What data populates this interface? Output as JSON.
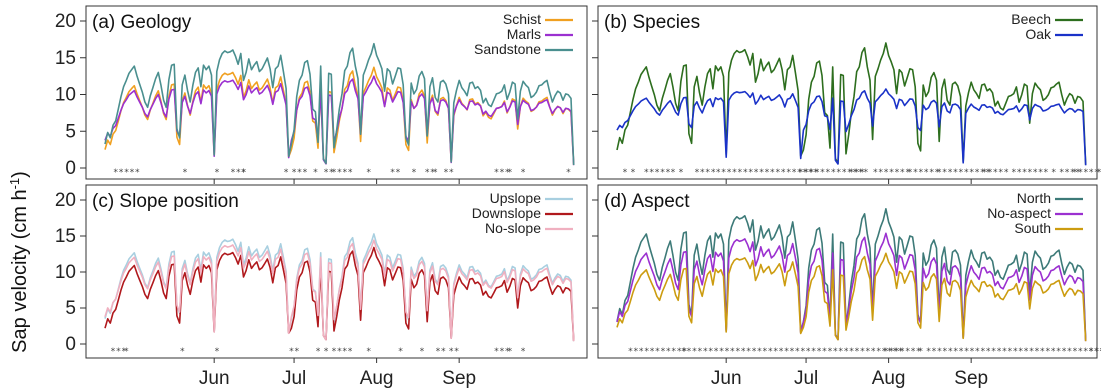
{
  "chart_data": {
    "type": "line",
    "ylabel": "Sap velocity (cm h",
    "ylabel_sup": "-1",
    "ylabel_close": ")",
    "ylim": [
      0,
      21
    ],
    "yticks": [
      0,
      5,
      10,
      15,
      20
    ],
    "x_day_range": [
      0,
      175
    ],
    "months": [
      {
        "label": "Jun",
        "day": 41
      },
      {
        "label": "Jul",
        "day": 71
      },
      {
        "label": "Aug",
        "day": 102
      },
      {
        "label": "Sep",
        "day": 133
      }
    ],
    "panels": [
      {
        "id": "geology",
        "title": "(a) Geology",
        "legend_position": "top-right",
        "series": [
          {
            "name": "Schist",
            "color": "#f0a020",
            "scale": 1.0,
            "offset": 0
          },
          {
            "name": "Marls",
            "color": "#9b30d0",
            "scale": 0.78,
            "offset": 1.8
          },
          {
            "name": "Sandstone",
            "color": "#4a8f8f",
            "scale": 1.22,
            "offset": 0.2
          }
        ],
        "significance": [
          {
            "day": 3,
            "text": "*****"
          },
          {
            "day": 29,
            "text": "*"
          },
          {
            "day": 41,
            "text": "*"
          },
          {
            "day": 47,
            "text": "***"
          },
          {
            "day": 51,
            "text": "*"
          },
          {
            "day": 67,
            "text": "*"
          },
          {
            "day": 70,
            "text": "***"
          },
          {
            "day": 78,
            "text": "*"
          },
          {
            "day": 82,
            "text": "**"
          },
          {
            "day": 85,
            "text": "****"
          },
          {
            "day": 98,
            "text": "*"
          },
          {
            "day": 107,
            "text": "**"
          },
          {
            "day": 115,
            "text": "*"
          },
          {
            "day": 120,
            "text": "**"
          },
          {
            "day": 123,
            "text": "*"
          },
          {
            "day": 127,
            "text": "**"
          },
          {
            "day": 146,
            "text": "***"
          },
          {
            "day": 151,
            "text": "*"
          },
          {
            "day": 156,
            "text": "*"
          },
          {
            "day": 173,
            "text": "*"
          }
        ]
      },
      {
        "id": "species",
        "title": "(b) Species",
        "legend_position": "top-right",
        "series": [
          {
            "name": "Beech",
            "color": "#2d6e1e",
            "scale": 1.3,
            "offset": -0.8
          },
          {
            "name": "Oak",
            "color": "#1a32c8",
            "scale": 0.5,
            "offset": 3.9
          }
        ],
        "significance": [
          {
            "day": 2,
            "text": "*"
          },
          {
            "day": 5,
            "text": "*"
          },
          {
            "day": 10,
            "text": "*****"
          },
          {
            "day": 20,
            "text": "*"
          },
          {
            "day": 23,
            "text": "*"
          },
          {
            "day": 29,
            "text": "****"
          },
          {
            "day": 37,
            "text": "*******************"
          },
          {
            "day": 68,
            "text": "*************"
          },
          {
            "day": 87,
            "text": "***"
          },
          {
            "day": 96,
            "text": "*******"
          },
          {
            "day": 109,
            "text": "******"
          },
          {
            "day": 120,
            "text": "**********"
          },
          {
            "day": 137,
            "text": "*****"
          },
          {
            "day": 148,
            "text": "***"
          },
          {
            "day": 154,
            "text": "***"
          },
          {
            "day": 160,
            "text": "*"
          },
          {
            "day": 163,
            "text": "*"
          },
          {
            "day": 166,
            "text": "****"
          },
          {
            "day": 171,
            "text": "*****"
          },
          {
            "day": 180,
            "text": "*"
          },
          {
            "day": 186,
            "text": "***"
          },
          {
            "day": 191,
            "text": "*"
          }
        ]
      },
      {
        "id": "slope",
        "title": "(c) Slope position",
        "legend_position": "top-right",
        "series": [
          {
            "name": "Upslope",
            "color": "#a8cfe0",
            "scale": 1.05,
            "offset": 0.9
          },
          {
            "name": "Downslope",
            "color": "#b0181c",
            "scale": 1.0,
            "offset": -0.3
          },
          {
            "name": "No-slope",
            "color": "#f0b0c0",
            "scale": 0.95,
            "offset": 1.4
          }
        ],
        "significance": [
          {
            "day": 2,
            "text": "***"
          },
          {
            "day": 7,
            "text": "*"
          },
          {
            "day": 28,
            "text": "*"
          },
          {
            "day": 41,
            "text": "*"
          },
          {
            "day": 69,
            "text": "**"
          },
          {
            "day": 79,
            "text": "*"
          },
          {
            "day": 82,
            "text": "*"
          },
          {
            "day": 85,
            "text": "**"
          },
          {
            "day": 89,
            "text": "**"
          },
          {
            "day": 98,
            "text": "*"
          },
          {
            "day": 110,
            "text": "*"
          },
          {
            "day": 118,
            "text": "*"
          },
          {
            "day": 124,
            "text": "**"
          },
          {
            "day": 129,
            "text": "**"
          },
          {
            "day": 146,
            "text": "***"
          },
          {
            "day": 151,
            "text": "*"
          },
          {
            "day": 156,
            "text": "*"
          }
        ]
      },
      {
        "id": "aspect",
        "title": "(d) Aspect",
        "legend_position": "top-right",
        "series": [
          {
            "name": "North",
            "color": "#3d7a78",
            "scale": 1.4,
            "offset": -0.4
          },
          {
            "name": "No-aspect",
            "color": "#9b30d0",
            "scale": 1.1,
            "offset": 0.3
          },
          {
            "name": "South",
            "color": "#cc9c10",
            "scale": 0.92,
            "offset": 0.0
          }
        ],
        "significance": [
          {
            "day": 4,
            "text": "***********"
          },
          {
            "day": 24,
            "text": "*****************************************"
          },
          {
            "day": 100,
            "text": "*******"
          },
          {
            "day": 113,
            "text": "*"
          },
          {
            "day": 116,
            "text": "**********************************"
          },
          {
            "day": 177,
            "text": "****************************"
          }
        ]
      }
    ],
    "base_series": {
      "x_start": 0,
      "x_step": 1,
      "values": [
        2.5,
        3.8,
        3.2,
        4.6,
        5.1,
        6.4,
        7.8,
        8.9,
        9.6,
        10.4,
        10.8,
        11.2,
        10.1,
        9.2,
        8.3,
        7.2,
        6.6,
        7.9,
        8.8,
        9.8,
        10.5,
        9.1,
        7.4,
        6.6,
        9.7,
        11.3,
        11.4,
        4.2,
        3.2,
        9.1,
        10.2,
        8.5,
        7.2,
        9.1,
        10.5,
        11.0,
        8.9,
        11.3,
        10.8,
        11.2,
        10.2,
        1.5,
        10.6,
        11.9,
        12.6,
        12.9,
        12.7,
        12.8,
        13.0,
        12.3,
        11.4,
        12.6,
        9.6,
        10.5,
        12.0,
        10.8,
        11.3,
        11.7,
        10.6,
        10.9,
        11.5,
        12.1,
        10.9,
        8.8,
        10.9,
        11.2,
        12.4,
        10.6,
        8.7,
        1.3,
        2.5,
        4.1,
        7.8,
        9.6,
        10.2,
        11.6,
        11.8,
        10.3,
        6.4,
        6.1,
        2.7,
        11.2,
        1.0,
        0.4,
        10.4,
        10.3,
        2.1,
        4.1,
        6.4,
        8.1,
        10.7,
        11.2,
        12.7,
        13.2,
        11.2,
        9.8,
        3.6,
        10.2,
        11.0,
        11.9,
        12.6,
        13.7,
        12.4,
        11.7,
        10.9,
        8.4,
        10.9,
        10.6,
        9.2,
        10.1,
        11.0,
        10.9,
        9.1,
        3.2,
        2.4,
        9.3,
        8.1,
        8.6,
        10.1,
        10.6,
        9.8,
        3.4,
        8.9,
        9.9,
        7.7,
        7.2,
        9.4,
        9.6,
        9.2,
        8.1,
        0.6,
        7.1,
        8.5,
        9.6,
        8.8,
        8.4,
        7.9,
        9.3,
        9.4,
        8.7,
        8.9,
        8.5,
        7.1,
        7.6,
        6.9,
        6.7,
        7.4,
        8.1,
        8.2,
        8.4,
        9.1,
        7.5,
        8.3,
        9.4,
        9.2,
        5.3,
        8.4,
        9.5,
        9.1,
        8.8,
        7.7,
        7.9,
        8.3,
        9.0,
        9.1,
        9.4,
        9.6,
        8.3,
        7.2,
        7.9,
        8.4,
        8.2,
        7.4,
        8.1,
        8.0,
        7.6,
        0.2
      ]
    }
  },
  "labels": {
    "legend": {
      "geology": [
        "Schist",
        "Marls",
        "Sandstone"
      ],
      "species": [
        "Beech",
        "Oak"
      ],
      "slope": [
        "Upslope",
        "Downslope",
        "No-slope"
      ],
      "aspect": [
        "North",
        "No-aspect",
        "South"
      ]
    }
  }
}
